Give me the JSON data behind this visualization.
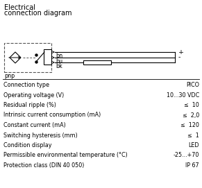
{
  "title_line1": "Electrical",
  "title_line2": "connection diagram",
  "specs": [
    [
      "Connection type",
      "PICO"
    ],
    [
      "Operating voltage (V)",
      "10...30 VDC"
    ],
    [
      "Residual ripple (%)",
      "≤  10"
    ],
    [
      "Intrinsic current consumption (mA)",
      "≤  2,0"
    ],
    [
      "Constant current (mA)",
      "≤  120"
    ],
    [
      "Switching hysteresis (mm)",
      "≤  1"
    ],
    [
      "Condition display",
      "LED"
    ],
    [
      "Permissible environmental temperature (°C)",
      "-25...+70"
    ],
    [
      "Protection class (DIN 40 050)",
      "IP 67"
    ]
  ],
  "pnp_label": "pnp",
  "wire_labels": [
    "bn",
    "bu",
    "bk"
  ],
  "plus_label": "+",
  "minus_label": "-",
  "font_size": 5.8,
  "title_font_size": 7.0,
  "diagram_bg": "#f2f2f2"
}
